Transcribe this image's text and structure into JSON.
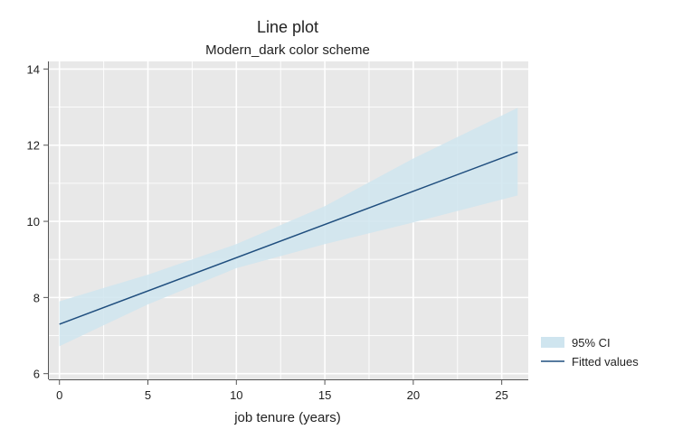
{
  "chart_data": {
    "type": "line",
    "title": "Line plot",
    "subtitle": "Modern_dark color scheme",
    "xlabel": "job tenure (years)",
    "ylabel": "",
    "xlim": [
      -0.6,
      26.5
    ],
    "ylim": [
      5.85,
      14.2
    ],
    "xticks": [
      0,
      5,
      10,
      15,
      20,
      25
    ],
    "yticks": [
      6,
      8,
      10,
      12,
      14
    ],
    "grid": true,
    "legend_position": "right",
    "colors": {
      "background": "#ffffff",
      "plot_area": "#e8e8e8",
      "grid": "#ffffff",
      "fitted_line": "#1f4e7e",
      "ci_band": "#cfe5ef"
    },
    "series": [
      {
        "name": "Fitted values",
        "kind": "line",
        "x": [
          0,
          25.9
        ],
        "y": [
          7.3,
          11.82
        ]
      },
      {
        "name": "95% CI",
        "kind": "area",
        "x": [
          0,
          5,
          10,
          15,
          20,
          25.9
        ],
        "lower": [
          6.72,
          7.82,
          8.77,
          9.4,
          9.97,
          10.68
        ],
        "upper": [
          7.9,
          8.6,
          9.4,
          10.4,
          11.65,
          12.98
        ]
      }
    ],
    "legend": [
      {
        "name": "95% CI",
        "symbol": "area"
      },
      {
        "name": "Fitted values",
        "symbol": "line"
      }
    ]
  }
}
